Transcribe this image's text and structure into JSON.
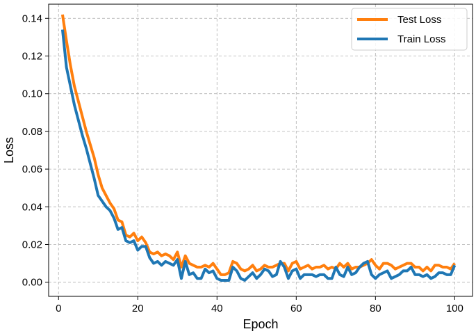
{
  "chart_data": {
    "type": "line",
    "title": "",
    "xlabel": "Epoch",
    "ylabel": "Loss",
    "xlim": [
      -2.5,
      104.5
    ],
    "ylim": [
      -0.0075,
      0.1475
    ],
    "xticks": [
      0,
      20,
      40,
      60,
      80,
      100
    ],
    "yticks": [
      0.0,
      0.02,
      0.04,
      0.06,
      0.08,
      0.1,
      0.12,
      0.14
    ],
    "xtick_labels": [
      "0",
      "20",
      "40",
      "60",
      "80",
      "100"
    ],
    "ytick_labels": [
      "0.00",
      "0.02",
      "0.04",
      "0.06",
      "0.08",
      "0.10",
      "0.12",
      "0.14"
    ],
    "grid": true,
    "legend_position": "top-right",
    "colors": {
      "test": "#ff7f0e",
      "train": "#1f77b4"
    },
    "x": [
      1,
      2,
      3,
      4,
      5,
      6,
      7,
      8,
      9,
      10,
      11,
      12,
      13,
      14,
      15,
      16,
      17,
      18,
      19,
      20,
      21,
      22,
      23,
      24,
      25,
      26,
      27,
      28,
      29,
      30,
      31,
      32,
      33,
      34,
      35,
      36,
      37,
      38,
      39,
      40,
      41,
      42,
      43,
      44,
      45,
      46,
      47,
      48,
      49,
      50,
      51,
      52,
      53,
      54,
      55,
      56,
      57,
      58,
      59,
      60,
      61,
      62,
      63,
      64,
      65,
      66,
      67,
      68,
      69,
      70,
      71,
      72,
      73,
      74,
      75,
      76,
      77,
      78,
      79,
      80,
      81,
      82,
      83,
      84,
      85,
      86,
      87,
      88,
      89,
      90,
      91,
      92,
      93,
      94,
      95,
      96,
      97,
      98,
      99,
      100
    ],
    "series": [
      {
        "name": "Test Loss",
        "color": "#ff7f0e",
        "values": [
          0.142,
          0.128,
          0.115,
          0.104,
          0.096,
          0.088,
          0.08,
          0.073,
          0.066,
          0.057,
          0.05,
          0.046,
          0.042,
          0.039,
          0.033,
          0.032,
          0.025,
          0.024,
          0.026,
          0.022,
          0.024,
          0.021,
          0.016,
          0.015,
          0.016,
          0.014,
          0.015,
          0.014,
          0.012,
          0.016,
          0.008,
          0.014,
          0.01,
          0.009,
          0.008,
          0.008,
          0.009,
          0.008,
          0.01,
          0.007,
          0.004,
          0.004,
          0.005,
          0.011,
          0.01,
          0.007,
          0.006,
          0.007,
          0.009,
          0.006,
          0.007,
          0.009,
          0.008,
          0.008,
          0.009,
          0.01,
          0.01,
          0.006,
          0.01,
          0.011,
          0.007,
          0.008,
          0.009,
          0.007,
          0.008,
          0.008,
          0.009,
          0.007,
          0.008,
          0.007,
          0.01,
          0.008,
          0.01,
          0.007,
          0.008,
          0.008,
          0.009,
          0.01,
          0.012,
          0.009,
          0.007,
          0.01,
          0.01,
          0.009,
          0.007,
          0.008,
          0.009,
          0.01,
          0.01,
          0.008,
          0.008,
          0.006,
          0.008,
          0.006,
          0.009,
          0.009,
          0.008,
          0.008,
          0.007,
          0.01
        ]
      },
      {
        "name": "Train Loss",
        "color": "#1f77b4",
        "values": [
          0.134,
          0.114,
          0.104,
          0.094,
          0.086,
          0.078,
          0.071,
          0.063,
          0.055,
          0.046,
          0.043,
          0.04,
          0.038,
          0.034,
          0.028,
          0.029,
          0.022,
          0.021,
          0.022,
          0.017,
          0.019,
          0.019,
          0.013,
          0.01,
          0.011,
          0.009,
          0.011,
          0.01,
          0.009,
          0.012,
          0.002,
          0.011,
          0.004,
          0.005,
          0.002,
          0.002,
          0.007,
          0.005,
          0.006,
          0.002,
          0.001,
          0.001,
          0.001,
          0.008,
          0.006,
          0.002,
          0.001,
          0.003,
          0.005,
          0.002,
          0.004,
          0.007,
          0.006,
          0.003,
          0.004,
          0.011,
          0.008,
          0.002,
          0.006,
          0.007,
          0.002,
          0.004,
          0.004,
          0.004,
          0.003,
          0.004,
          0.004,
          0.002,
          0.002,
          0.008,
          0.004,
          0.003,
          0.008,
          0.004,
          0.005,
          0.008,
          0.01,
          0.011,
          0.004,
          0.002,
          0.004,
          0.005,
          0.006,
          0.002,
          0.003,
          0.004,
          0.006,
          0.006,
          0.008,
          0.004,
          0.004,
          0.003,
          0.004,
          0.002,
          0.003,
          0.005,
          0.005,
          0.004,
          0.004,
          0.009
        ]
      }
    ]
  }
}
